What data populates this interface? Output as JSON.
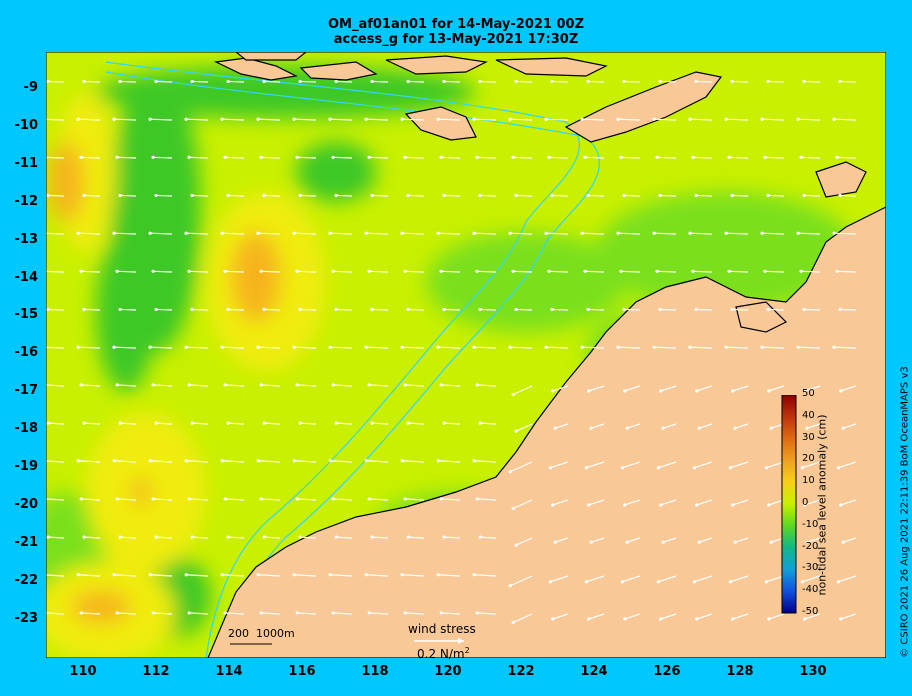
{
  "title": {
    "line1": "OM_af01an01 for 14-May-2021 00Z",
    "line2": "access_g for 13-May-2021 17:30Z"
  },
  "y_ticks": [
    "-9",
    "-10",
    "-11",
    "-12",
    "-13",
    "-14",
    "-15",
    "-16",
    "-17",
    "-18",
    "-19",
    "-20",
    "-21",
    "-22",
    "-23"
  ],
  "x_ticks": [
    "110",
    "112",
    "114",
    "116",
    "118",
    "120",
    "122",
    "124",
    "126",
    "128",
    "130"
  ],
  "colorbar": {
    "title": "non-tidal sea level anomaly (cm)",
    "ticks": [
      "50",
      "40",
      "30",
      "20",
      "10",
      "0",
      "-10",
      "-20",
      "-30",
      "-40",
      "-50"
    ],
    "colors": [
      "#8b0000",
      "#c0320a",
      "#e06a10",
      "#f0a020",
      "#f6d018",
      "#c8f000",
      "#5ad820",
      "#10b888",
      "#10a0d8",
      "#1050e0",
      "#00008b"
    ]
  },
  "scale_bar": {
    "label_a": "200",
    "label_b": "1000m"
  },
  "wind_key": {
    "title": "wind stress",
    "value": "0.2 N/m",
    "exponent": "2"
  },
  "credit": "© CSIRO 2021  26 Aug 2021 22:11:39 BoM OceanMAPS v3",
  "colors": {
    "frame": "#00c8ff",
    "land": "#f8c896",
    "ocean_base": "#c8f000",
    "green_mid": "#7ae01e",
    "green_dark": "#3cc828",
    "yellow": "#f0ec10",
    "orange": "#f6b41c",
    "contour": "#30d8f0",
    "arrows": "#ffffff"
  }
}
